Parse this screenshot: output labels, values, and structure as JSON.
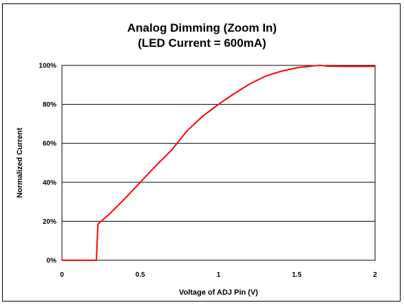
{
  "chart_data": {
    "type": "line",
    "title": "Analog Dimming (Zoom In)",
    "subtitle": "(LED Current = 600mA)",
    "xlabel": "Voltage of ADJ Pin (V)",
    "ylabel": "Normalized Current",
    "xlim": [
      0,
      2
    ],
    "ylim": [
      0,
      100
    ],
    "x_ticks": [
      0,
      0.5,
      1,
      1.5,
      2
    ],
    "x_tick_labels": [
      "0",
      "0.5",
      "1",
      "1.5",
      "2"
    ],
    "y_ticks": [
      0,
      20,
      40,
      60,
      80,
      100
    ],
    "y_tick_labels": [
      "0%",
      "20%",
      "40%",
      "60%",
      "80%",
      "100%"
    ],
    "grid": "horizontal",
    "legend": "none",
    "series": [
      {
        "color": "#ff0000",
        "x": [
          0,
          0.22,
          0.225,
          0.23,
          0.25,
          0.3,
          0.4,
          0.5,
          0.6,
          0.7,
          0.8,
          0.9,
          1.0,
          1.1,
          1.2,
          1.3,
          1.4,
          1.5,
          1.6,
          1.65,
          1.7,
          1.8,
          1.9,
          2.0
        ],
        "y": [
          0,
          0,
          10,
          18.5,
          20,
          23.5,
          31.5,
          40,
          48.5,
          56.5,
          66.5,
          74,
          80,
          85.5,
          90.5,
          94.5,
          97,
          98.8,
          99.7,
          100,
          99.6,
          99.5,
          99.5,
          99.5
        ]
      }
    ]
  }
}
